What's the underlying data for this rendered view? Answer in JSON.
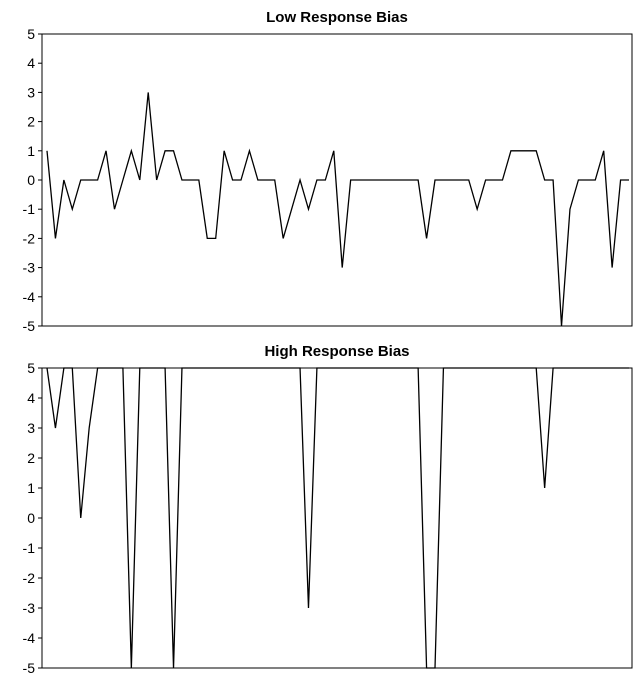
{
  "chart_data": [
    {
      "type": "line",
      "title": "Low Response Bias",
      "xlabel": "",
      "ylabel": "",
      "ylim": [
        -5,
        5
      ],
      "yticks": [
        "5",
        "4",
        "3",
        "2",
        "1",
        "0",
        "-1",
        "-2",
        "-3",
        "-4",
        "-5"
      ],
      "grid": false,
      "legend": "none",
      "series": [
        {
          "values": [
            1,
            -2,
            0,
            -1,
            0,
            0,
            0,
            1,
            -1,
            0,
            1,
            0,
            3,
            0,
            1,
            1,
            0,
            0,
            0,
            -2,
            -2,
            1,
            0,
            0,
            1,
            0,
            0,
            0,
            -2,
            -1,
            0,
            -1,
            0,
            0,
            1,
            -3,
            0,
            0,
            0,
            0,
            0,
            0,
            0,
            0,
            0,
            -2,
            0,
            0,
            0,
            0,
            0,
            -1,
            0,
            0,
            0,
            1,
            1,
            1,
            1,
            0,
            0,
            -5,
            -1,
            0,
            0,
            0,
            1,
            -3,
            0,
            0
          ]
        }
      ]
    },
    {
      "type": "line",
      "title": "High Response Bias",
      "xlabel": "",
      "ylabel": "",
      "ylim": [
        -5,
        5
      ],
      "yticks": [
        "5",
        "4",
        "3",
        "2",
        "1",
        "0",
        "-1",
        "-2",
        "-3",
        "-4",
        "-5"
      ],
      "grid": false,
      "legend": "none",
      "series": [
        {
          "values": [
            5,
            3,
            5,
            5,
            0,
            3,
            5,
            5,
            5,
            5,
            -5,
            5,
            5,
            5,
            5,
            -5,
            5,
            5,
            5,
            5,
            5,
            5,
            5,
            5,
            5,
            5,
            5,
            5,
            5,
            5,
            5,
            -3,
            5,
            5,
            5,
            5,
            5,
            5,
            5,
            5,
            5,
            5,
            5,
            5,
            5,
            -5,
            -5,
            5,
            5,
            5,
            5,
            5,
            5,
            5,
            5,
            5,
            5,
            5,
            5,
            1,
            5,
            5,
            5,
            5,
            5,
            5,
            5,
            5,
            5,
            5
          ]
        }
      ]
    }
  ]
}
